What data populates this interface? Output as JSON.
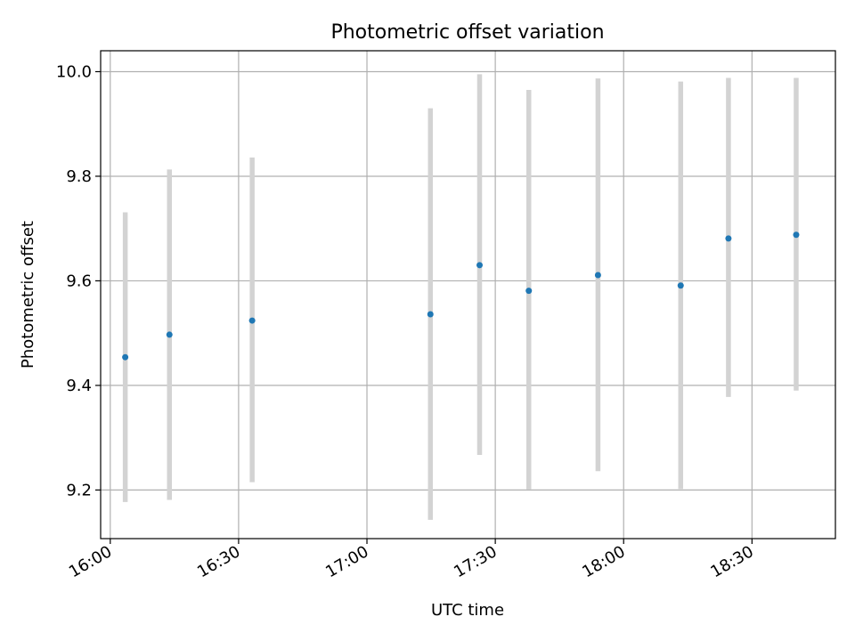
{
  "chart_data": {
    "type": "scatter",
    "title": "Photometric offset variation",
    "xlabel": "UTC time",
    "ylabel": "Photometric offset",
    "x_ticks": [
      "16:00",
      "16:30",
      "17:00",
      "17:30",
      "18:00",
      "18:30"
    ],
    "y_ticks": [
      "9.2",
      "9.4",
      "9.6",
      "9.8",
      "10.0"
    ],
    "xlim": [
      "15:57:45",
      "18:49:30"
    ],
    "ylim": [
      9.107,
      10.04
    ],
    "grid": true,
    "x_tick_rotation": "30 degrees",
    "point_color": "#1f77b4",
    "errorbar_color": "#d3d3d3",
    "series": [
      {
        "x": [
          "16:03:30",
          "16:13:50",
          "16:33:10",
          "17:14:50",
          "17:26:20",
          "17:37:50",
          "17:54:00",
          "18:13:20",
          "18:24:30",
          "18:40:20"
        ],
        "y": [
          9.454,
          9.497,
          9.524,
          9.536,
          9.63,
          9.581,
          9.611,
          9.591,
          9.681,
          9.688
        ],
        "yerr_low": [
          9.177,
          9.181,
          9.215,
          9.143,
          9.267,
          9.201,
          9.236,
          9.202,
          9.378,
          9.39
        ],
        "yerr_high": [
          9.731,
          9.813,
          9.836,
          9.93,
          9.995,
          9.965,
          9.987,
          9.981,
          9.988,
          9.988
        ]
      }
    ]
  }
}
